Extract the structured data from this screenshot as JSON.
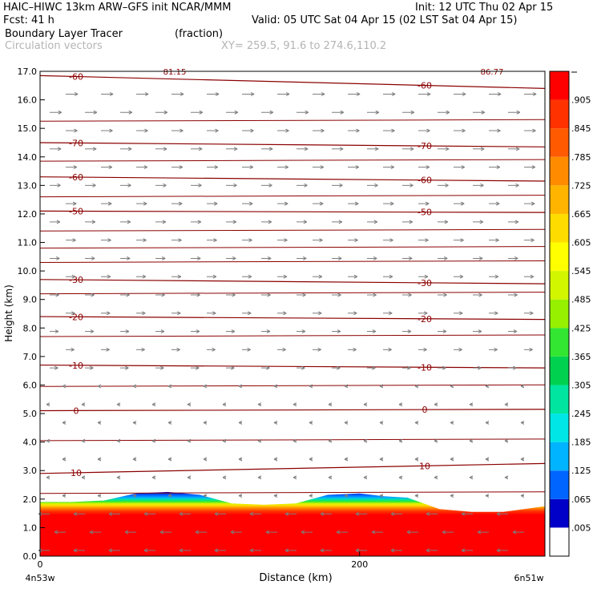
{
  "header": {
    "title": "HAIC–HIWC 13km ARW–GFS init   NCAR/MMM",
    "init": "Init: 12 UTC Thu 02 Apr 15",
    "fcst": "Fcst:   41 h",
    "valid": "Valid: 05 UTC Sat 04 Apr 15 (02 LST Sat 04 Apr 15)",
    "field": "Boundary Layer Tracer",
    "units": "(fraction)",
    "vectors": "Circulation vectors",
    "xy": "XY= 259.5, 91.6 to 274.6,110.2"
  },
  "chart_data": {
    "type": "heatmap",
    "xlabel": "Distance (km)",
    "ylabel": "Height (km)",
    "xlim": [
      0,
      316
    ],
    "ylim": [
      0,
      17
    ],
    "x_ticks": [
      0,
      200
    ],
    "x_tick_labels": [
      "0",
      "200"
    ],
    "y_ticks": [
      0,
      1,
      2,
      3,
      4,
      5,
      6,
      7,
      8,
      9,
      10,
      11,
      12,
      13,
      14,
      15,
      16,
      17
    ],
    "y_tick_labels": [
      "0.0",
      "1.0",
      "2.0",
      "3.0",
      "4.0",
      "5.0",
      "6.0",
      "7.0",
      "8.0",
      "9.0",
      "10.0",
      "11.0",
      "12.0",
      "13.0",
      "14.0",
      "15.0",
      "16.0",
      "17.0"
    ],
    "x_end_labels": [
      "4n53w",
      "6n51w"
    ],
    "colorbar": {
      "labels": [
        ".005",
        ".065",
        ".125",
        ".185",
        ".245",
        ".305",
        ".365",
        ".425",
        ".485",
        ".545",
        ".605",
        ".665",
        ".725",
        ".785",
        ".845",
        ".905"
      ],
      "colors": [
        "#ffffff",
        "#0000c8",
        "#0064ff",
        "#00b4ff",
        "#00e6e6",
        "#00e6a0",
        "#00d250",
        "#32e632",
        "#96f000",
        "#d2f500",
        "#ffff00",
        "#ffdc00",
        "#ffb400",
        "#ff8c00",
        "#ff5a00",
        "#ff3200",
        "#ff0000"
      ]
    },
    "boundary_layer_top_km": {
      "x": [
        0,
        20,
        40,
        60,
        80,
        100,
        120,
        140,
        160,
        180,
        200,
        215,
        230,
        250,
        270,
        290,
        316
      ],
      "y": [
        1.9,
        1.9,
        1.95,
        2.2,
        2.25,
        2.15,
        1.85,
        1.8,
        1.85,
        2.15,
        2.2,
        2.1,
        2.05,
        1.65,
        1.55,
        1.55,
        1.75
      ]
    },
    "temperature_contours": [
      {
        "label": "10",
        "km_left": 2.9,
        "km_right": 3.25
      },
      {
        "label": "0",
        "km_left": 5.1,
        "km_right": 5.15
      },
      {
        "label": "-10",
        "km_left": 6.7,
        "km_right": 6.6
      },
      {
        "label": "-20",
        "km_left": 8.4,
        "km_right": 8.3
      },
      {
        "label": "-30",
        "km_left": 9.7,
        "km_right": 9.55
      },
      {
        "label": "-50",
        "km_left": 12.1,
        "km_right": 12.05
      },
      {
        "label": "-60",
        "km_left": 13.3,
        "km_right": 13.15
      },
      {
        "label": "-70",
        "km_left": 14.5,
        "km_right": 14.35
      },
      {
        "label": "-60",
        "km_left": 16.85,
        "km_right": 16.4
      }
    ],
    "top_labels": [
      "81.15",
      "86.77"
    ]
  }
}
